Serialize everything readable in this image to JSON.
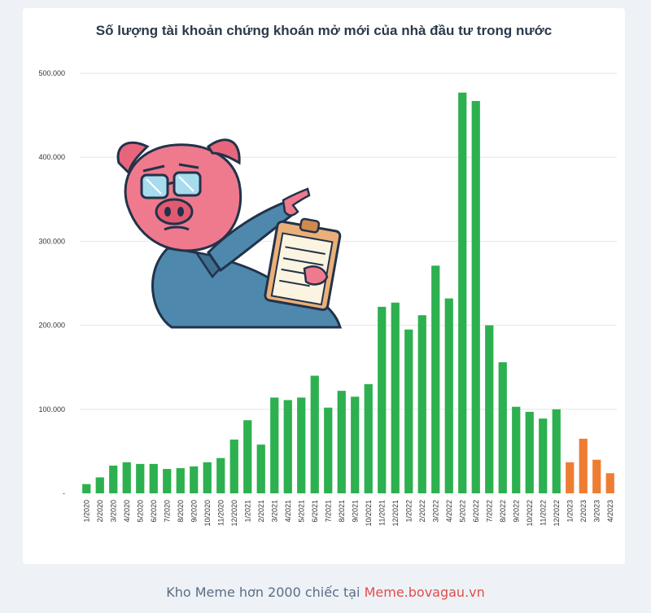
{
  "chart_data": {
    "type": "bar",
    "title": "Số lượng tài khoản chứng khoán mở mới của nhà đầu tư trong nước",
    "ylim": [
      0,
      500000
    ],
    "yticks": [
      "-",
      "100.000",
      "200.000",
      "300.000",
      "400.000",
      "500.000"
    ],
    "grid": true,
    "categories": [
      "1/2020",
      "2/2020",
      "3/2020",
      "4/2020",
      "5/2020",
      "6/2020",
      "7/2020",
      "8/2020",
      "9/2020",
      "10/2020",
      "11/2020",
      "12/2020",
      "1/2021",
      "2/2021",
      "3/2021",
      "4/2021",
      "5/2021",
      "6/2021",
      "7/2021",
      "8/2021",
      "9/2021",
      "10/2021",
      "11/2021",
      "12/2021",
      "1/2022",
      "2/2022",
      "3/2022",
      "4/2022",
      "5/2022",
      "6/2022",
      "7/2022",
      "8/2022",
      "9/2022",
      "10/2022",
      "11/2022",
      "12/2022",
      "1/2023",
      "2/2023",
      "3/2023",
      "4/2023"
    ],
    "values": [
      11000,
      19000,
      33000,
      37000,
      35000,
      35000,
      29000,
      30000,
      32000,
      37000,
      42000,
      64000,
      87000,
      58000,
      114000,
      111000,
      114000,
      140000,
      102000,
      122000,
      115000,
      130000,
      222000,
      227000,
      195000,
      212000,
      271000,
      232000,
      477000,
      467000,
      200000,
      156000,
      103000,
      97000,
      89000,
      100000,
      37000,
      65000,
      40000,
      24000
    ],
    "colors": [
      "#2db04f",
      "#2db04f",
      "#2db04f",
      "#2db04f",
      "#2db04f",
      "#2db04f",
      "#2db04f",
      "#2db04f",
      "#2db04f",
      "#2db04f",
      "#2db04f",
      "#2db04f",
      "#2db04f",
      "#2db04f",
      "#2db04f",
      "#2db04f",
      "#2db04f",
      "#2db04f",
      "#2db04f",
      "#2db04f",
      "#2db04f",
      "#2db04f",
      "#2db04f",
      "#2db04f",
      "#2db04f",
      "#2db04f",
      "#2db04f",
      "#2db04f",
      "#2db04f",
      "#2db04f",
      "#2db04f",
      "#2db04f",
      "#2db04f",
      "#2db04f",
      "#2db04f",
      "#2db04f",
      "#ee7d33",
      "#ee7d33",
      "#ee7d33",
      "#ee7d33"
    ]
  },
  "footer": {
    "prefix": "Kho Meme hơn 2000 chiếc tại ",
    "site": "Meme.bovagau.vn"
  },
  "meme": {
    "icon": "pig-pointing-clipboard-icon"
  }
}
